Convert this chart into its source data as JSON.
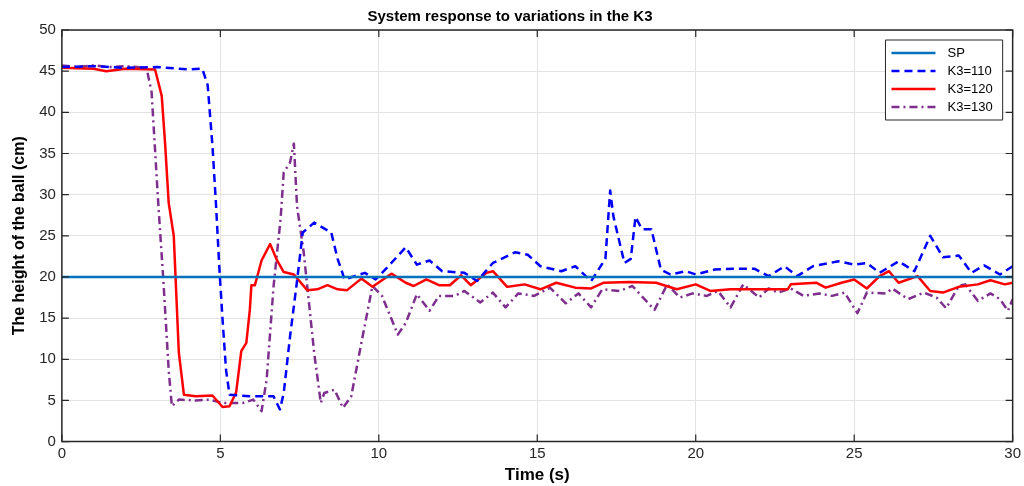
{
  "chart_data": {
    "type": "line",
    "title": "System response to variations in the K3",
    "xlabel": "Time (s)",
    "ylabel": "The height of the ball (cm)",
    "xlim": [
      0,
      30
    ],
    "xticks": [
      0,
      5,
      10,
      15,
      20,
      25,
      30
    ],
    "ylim": [
      0,
      50
    ],
    "yticks": [
      0,
      5,
      10,
      15,
      20,
      25,
      30,
      35,
      40,
      45,
      50
    ],
    "grid": true,
    "legend": "top right",
    "marker": "none",
    "series": [
      {
        "name": "SP",
        "color": "#0072bd",
        "line_style": "solid",
        "x": [
          0,
          30
        ],
        "values": [
          20,
          20
        ]
      },
      {
        "name": "K3=110",
        "color": "#0000ff",
        "line_style": "dashed",
        "x": [
          0,
          1,
          2,
          3,
          4.0,
          4.43,
          4.6,
          4.75,
          4.86,
          4.97,
          5.07,
          5.18,
          5.29,
          5.93,
          6.68,
          6.88,
          7.0,
          7.2,
          7.4,
          7.6,
          7.96,
          8.5,
          8.7,
          8.92,
          9.56,
          9.9,
          10.3,
          10.85,
          11.2,
          11.6,
          12.0,
          12.7,
          13.1,
          13.6,
          14.3,
          14.7,
          15.1,
          15.76,
          16.2,
          16.7,
          17.15,
          17.3,
          17.4,
          17.75,
          17.95,
          18.1,
          18.3,
          18.6,
          18.9,
          19.2,
          19.7,
          20.0,
          20.6,
          21.2,
          21.85,
          22.3,
          22.8,
          23.2,
          23.7,
          24.5,
          25.0,
          25.4,
          25.8,
          26.4,
          26.9,
          27.4,
          27.8,
          28.3,
          28.7,
          29.1,
          29.6,
          30
        ],
        "values": [
          45.5,
          45.6,
          45.4,
          45.5,
          45.2,
          45.3,
          43.3,
          36,
          29,
          21,
          14.8,
          8.7,
          5.7,
          5.5,
          5.5,
          3.9,
          5.9,
          12.8,
          18.9,
          25.4,
          26.6,
          25.4,
          22.2,
          19.7,
          20.5,
          19.7,
          21.3,
          23.6,
          21.5,
          22,
          20.7,
          20.5,
          19.5,
          21.7,
          23,
          22.7,
          21.3,
          20.7,
          21.3,
          19.5,
          22.2,
          30.5,
          27.4,
          21.7,
          22.2,
          27.3,
          25.8,
          25.8,
          20.9,
          20.3,
          20.7,
          20.3,
          20.9,
          21,
          21,
          20.1,
          21.3,
          20.1,
          21.3,
          21.9,
          21.5,
          21.7,
          20.5,
          21.9,
          20.7,
          25,
          22.4,
          22.6,
          20.5,
          21.4,
          20.3,
          21.3
        ]
      },
      {
        "name": "K3=120",
        "color": "#ff0000",
        "line_style": "solid",
        "x": [
          0,
          1,
          1.4,
          2,
          2.94,
          3.15,
          3.26,
          3.37,
          3.53,
          3.69,
          3.85,
          4.22,
          4.75,
          5.07,
          5.29,
          5.5,
          5.66,
          5.82,
          5.93,
          5.98,
          6.09,
          6.3,
          6.57,
          6.79,
          7.0,
          7.32,
          7.74,
          8.06,
          8.38,
          8.7,
          9.0,
          9.45,
          9.8,
          10.4,
          10.85,
          11.1,
          11.5,
          11.9,
          12.24,
          12.6,
          12.9,
          13.4,
          13.6,
          14.05,
          14.6,
          15.1,
          15.6,
          16.2,
          16.7,
          17.1,
          17.9,
          18.75,
          19.4,
          20.0,
          20.46,
          21.1,
          22.2,
          22.9,
          23.0,
          23.8,
          24.1,
          24.6,
          25.0,
          25.4,
          25.8,
          26.1,
          26.4,
          27.0,
          27.4,
          27.8,
          28.3,
          28.9,
          29.3,
          29.75,
          30
        ],
        "values": [
          45.4,
          45.3,
          45.0,
          45.3,
          45.2,
          42,
          36,
          29,
          25,
          10.8,
          5.7,
          5.5,
          5.6,
          4.2,
          4.3,
          6,
          11,
          12,
          16,
          19,
          19,
          22,
          24,
          22,
          20.6,
          20.3,
          18.4,
          18.5,
          19,
          18.5,
          18.4,
          19.8,
          18.8,
          20.4,
          19.3,
          18.9,
          19.7,
          19.0,
          19.0,
          20.2,
          19.0,
          20.5,
          20.7,
          18.8,
          19.1,
          18.5,
          19.3,
          18.7,
          18.6,
          19.3,
          19.4,
          19.3,
          18.5,
          19.1,
          18.3,
          18.5,
          18.5,
          18.5,
          19.1,
          19.3,
          18.7,
          19.3,
          19.7,
          18.6,
          20.1,
          20.7,
          19.3,
          20.1,
          18.3,
          18.1,
          18.8,
          19.1,
          19.6,
          19.1,
          19.3
        ]
      },
      {
        "name": "K3=130",
        "color": "#7e2f8e",
        "line_style": "dashdot",
        "x": [
          0,
          0.5,
          1,
          1.5,
          2,
          2.67,
          2.83,
          3.04,
          3.2,
          3.37,
          3.47,
          3.69,
          4.22,
          4.65,
          5.07,
          5.72,
          6.04,
          6.3,
          6.46,
          6.68,
          6.9,
          7.0,
          7.2,
          7.32,
          7.42,
          7.63,
          7.96,
          8.17,
          8.28,
          8.6,
          8.87,
          9.13,
          9.45,
          9.8,
          10.1,
          10.6,
          10.85,
          11.2,
          11.6,
          11.9,
          12.4,
          12.7,
          13.2,
          13.6,
          14.0,
          14.4,
          14.9,
          15.4,
          15.9,
          16.3,
          16.7,
          17.05,
          17.6,
          18.0,
          18.7,
          19.1,
          19.5,
          19.9,
          20.35,
          20.7,
          21.1,
          21.5,
          22.0,
          22.3,
          22.6,
          23.0,
          23.4,
          23.9,
          24.3,
          24.7,
          25.1,
          25.4,
          26.0,
          26.2,
          26.7,
          27.2,
          27.6,
          27.9,
          28.3,
          28.5,
          28.9,
          29.3,
          29.6,
          29.85,
          30
        ],
        "values": [
          45.7,
          45.5,
          45.7,
          45.5,
          45.6,
          45.4,
          42.5,
          29,
          19.7,
          8.7,
          4.3,
          5.1,
          5.0,
          5.1,
          4.7,
          4.7,
          5.1,
          3.7,
          7.5,
          18.9,
          27,
          32.7,
          33.9,
          36.2,
          28.6,
          23,
          10.8,
          4.7,
          5.9,
          6.3,
          4.1,
          5.5,
          12,
          18.9,
          17.7,
          13,
          14.4,
          17.9,
          15.9,
          17.7,
          17.7,
          18.3,
          16.9,
          18.1,
          16.3,
          18.0,
          17.7,
          18.7,
          16.8,
          18.0,
          16.3,
          18.5,
          18.3,
          18.9,
          16.0,
          19.1,
          17.5,
          18.0,
          17.7,
          18.3,
          16.3,
          19.1,
          17.5,
          18.6,
          18.1,
          18.6,
          17.7,
          18.0,
          17.7,
          18.1,
          15.6,
          18.1,
          18.0,
          18.6,
          17.3,
          18.1,
          17.5,
          16.2,
          18.9,
          19.1,
          17.1,
          18.0,
          17.3,
          15.9,
          17.3
        ]
      }
    ]
  }
}
